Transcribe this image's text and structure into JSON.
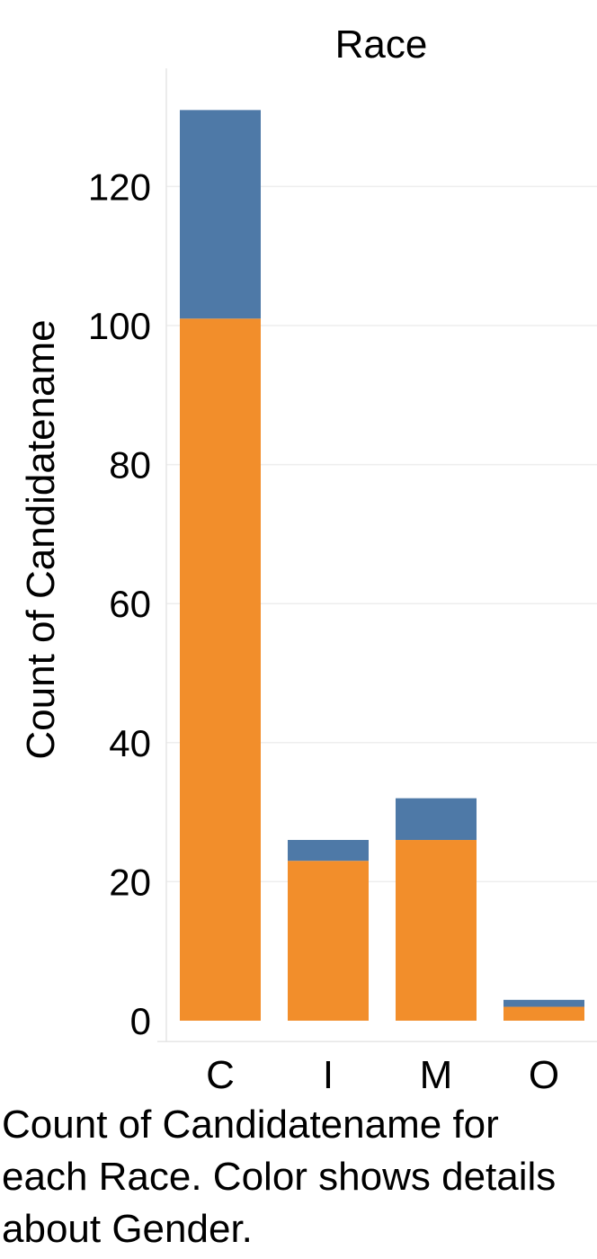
{
  "caption": "Count of Candidatename for each Race.  Color shows details about Gender.",
  "chart_data": {
    "type": "bar",
    "stacked": true,
    "header": "Race",
    "ylabel": "Count of Candidatename",
    "categories": [
      "C",
      "I",
      "M",
      "O"
    ],
    "series": [
      {
        "color": "#f28e2b",
        "values": [
          101,
          23,
          26,
          2
        ]
      },
      {
        "color": "#4e79a7",
        "values": [
          30,
          3,
          6,
          1
        ]
      }
    ],
    "yticks": [
      0,
      20,
      40,
      60,
      80,
      100,
      120
    ],
    "ylim": [
      -3,
      137
    ],
    "grid": true,
    "legend": "none"
  }
}
